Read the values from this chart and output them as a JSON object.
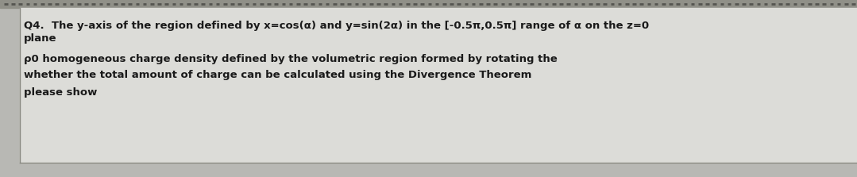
{
  "background_color": "#b8b8b4",
  "text_area_color": "#dcdcd8",
  "lines": [
    "Q4.  The y-axis of the region defined by x=cos(α) and y=sin(2α) in the [-0.5π,0.5π] range of α on the z=0",
    "plane",
    "ρ0 homogeneous charge density defined by the volumetric region formed by rotating the",
    "whether the total amount of charge can be calculated using the Divergence Theorem",
    "please show"
  ],
  "font_size": 9.5,
  "text_color": "#1a1a1a",
  "top_dot_color": "#555550",
  "top_dot_bg": "#909088",
  "border_color": "#888880",
  "bottom_line_color": "#888880"
}
